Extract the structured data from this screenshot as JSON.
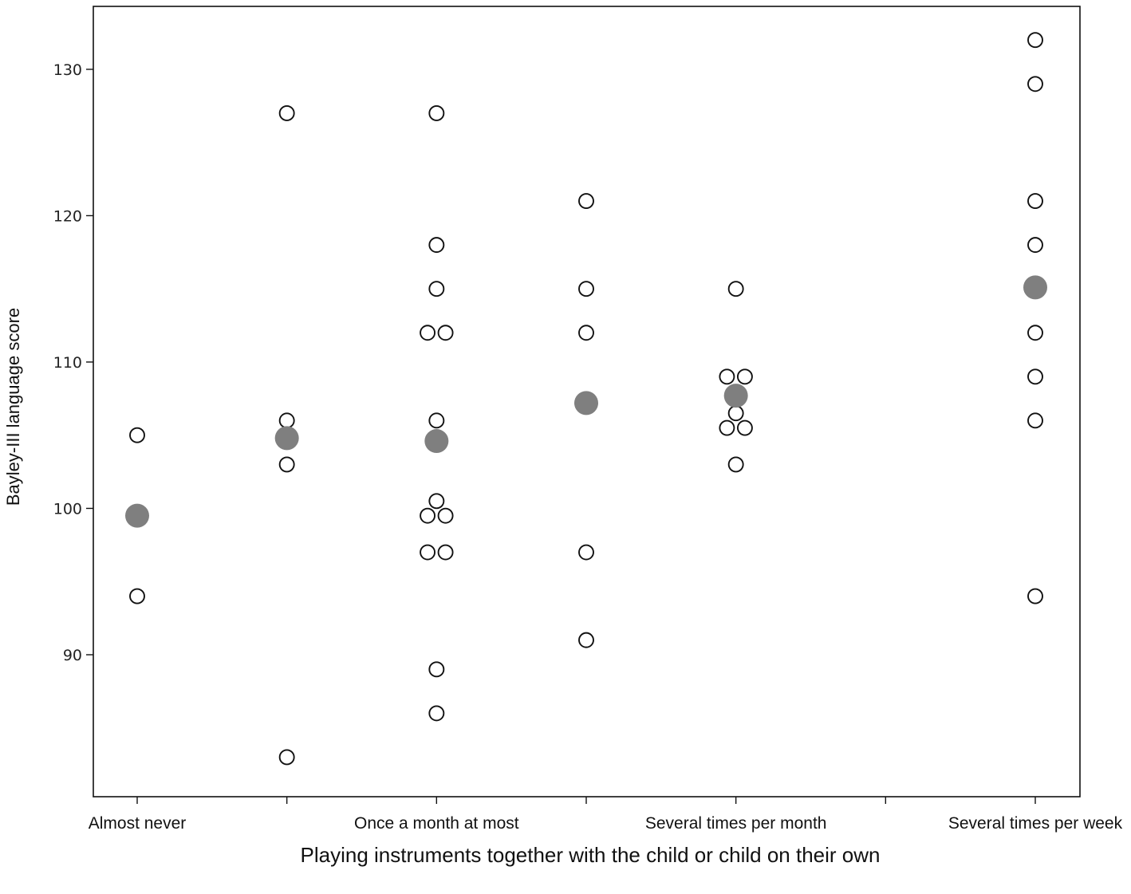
{
  "chart_data": {
    "type": "scatter",
    "title": "",
    "xlabel": "Playing instruments together with the child or child on their own",
    "ylabel": "Bayley-III language score",
    "ylim": [
      80.3,
      134.3
    ],
    "yticks": [
      90,
      100,
      110,
      120,
      130
    ],
    "x_tick_count": 7,
    "categories": [
      "Almost never",
      "",
      "Once a month at most",
      "",
      "Several times per month",
      "",
      "Several times per week"
    ],
    "grid": false,
    "legend": "none",
    "colors": {
      "individual_marker_stroke": "#111111",
      "individual_marker_fill": "#ffffff",
      "mean_marker_fill": "#7f7f7f"
    },
    "series": [
      {
        "role": "individual",
        "points": [
          {
            "x": 0,
            "y": 105
          },
          {
            "x": 0,
            "y": 94
          },
          {
            "x": 1,
            "y": 127
          },
          {
            "x": 1,
            "y": 106
          },
          {
            "x": 1,
            "y": 103
          },
          {
            "x": 1,
            "y": 83
          },
          {
            "x": 2,
            "y": 127
          },
          {
            "x": 2,
            "y": 118
          },
          {
            "x": 2,
            "y": 115
          },
          {
            "x": 1.94,
            "y": 112
          },
          {
            "x": 2.06,
            "y": 112
          },
          {
            "x": 2,
            "y": 106
          },
          {
            "x": 2,
            "y": 100.5
          },
          {
            "x": 1.94,
            "y": 99.5
          },
          {
            "x": 2.06,
            "y": 99.5
          },
          {
            "x": 1.94,
            "y": 97
          },
          {
            "x": 2.06,
            "y": 97
          },
          {
            "x": 2,
            "y": 89
          },
          {
            "x": 2,
            "y": 86
          },
          {
            "x": 3,
            "y": 121
          },
          {
            "x": 3,
            "y": 115
          },
          {
            "x": 3,
            "y": 112
          },
          {
            "x": 3,
            "y": 97
          },
          {
            "x": 3,
            "y": 91
          },
          {
            "x": 4,
            "y": 115
          },
          {
            "x": 3.94,
            "y": 109
          },
          {
            "x": 4.06,
            "y": 109
          },
          {
            "x": 4,
            "y": 106.5
          },
          {
            "x": 3.94,
            "y": 105.5
          },
          {
            "x": 4.06,
            "y": 105.5
          },
          {
            "x": 4,
            "y": 103
          },
          {
            "x": 6,
            "y": 132
          },
          {
            "x": 6,
            "y": 129
          },
          {
            "x": 6,
            "y": 121
          },
          {
            "x": 6,
            "y": 118
          },
          {
            "x": 6,
            "y": 112
          },
          {
            "x": 6,
            "y": 109
          },
          {
            "x": 6,
            "y": 106
          },
          {
            "x": 6,
            "y": 94
          }
        ]
      },
      {
        "role": "mean",
        "points": [
          {
            "x": 0,
            "y": 99.5
          },
          {
            "x": 1,
            "y": 104.8
          },
          {
            "x": 2,
            "y": 104.6
          },
          {
            "x": 3,
            "y": 107.2
          },
          {
            "x": 4,
            "y": 107.7
          },
          {
            "x": 6,
            "y": 115.1
          }
        ]
      }
    ]
  }
}
